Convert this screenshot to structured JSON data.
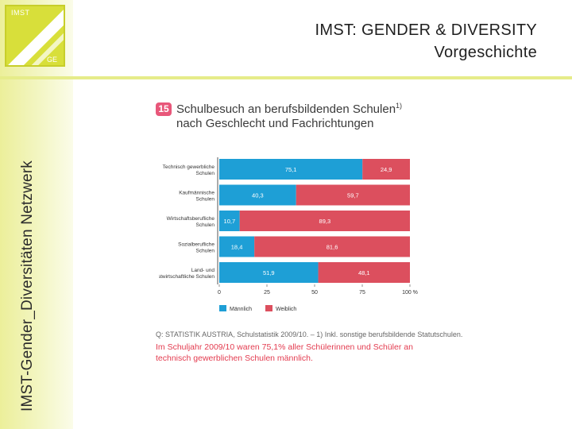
{
  "header": {
    "title_line1": "IMST: GENDER & DIVERSITY",
    "title_line2": "Vorgeschichte"
  },
  "sidebar": {
    "vertical_title": "IMST-Gender_Diversitäten Netzwerk",
    "logo_top": "IMST",
    "logo_bottom": "GE"
  },
  "figure": {
    "number": "15",
    "title_line1": "Schulbesuch an berufsbildenden Schulen",
    "title_sup": "1)",
    "title_line2": "nach Geschlecht und Fachrichtungen",
    "source": "Q: STATISTIK AUSTRIA, Schulstatistik 2009/10. – 1) Inkl. sonstige berufsbildende Statutschulen.",
    "note": "Im Schuljahr 2009/10 waren 75,1% aller Schülerinnen und Schüler an technisch gewerblichen Schulen männlich."
  },
  "colors": {
    "male": "#1e9fd6",
    "female": "#dc4f5e",
    "accent": "#d8df3a"
  },
  "chart_data": {
    "type": "bar",
    "orientation": "horizontal",
    "stacked": true,
    "categories": [
      "Technisch gewerbliche Schulen",
      "Kaufmännische Schulen",
      "Wirtschaftsberufliche Schulen",
      "Sozialberufliche Schulen",
      "Land- und forstwirtschaftliche Schulen"
    ],
    "series": [
      {
        "name": "Männlich",
        "values": [
          75.1,
          40.3,
          10.7,
          18.4,
          51.9
        ]
      },
      {
        "name": "Weiblich",
        "values": [
          24.9,
          59.7,
          89.3,
          81.6,
          48.1
        ]
      }
    ],
    "value_labels": {
      "Männlich": [
        "75,1",
        "40,3",
        "10,7",
        "18,4",
        "51,9"
      ],
      "Weiblich": [
        "24,9",
        "59,7",
        "89,3",
        "81,6",
        "48,1"
      ]
    },
    "xticks": [
      "0",
      "25",
      "50",
      "75",
      "100 %"
    ],
    "xlim": [
      0,
      100
    ],
    "legend": [
      "Männlich",
      "Weiblich"
    ],
    "legend_position": "bottom-left"
  }
}
